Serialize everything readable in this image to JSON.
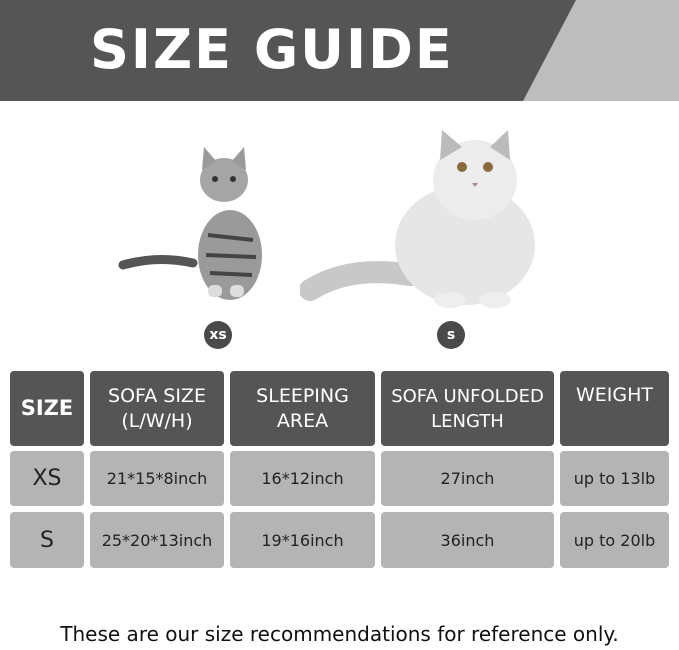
{
  "header": {
    "title": "SIZE GUIDE"
  },
  "cats": [
    {
      "badge": "xs"
    },
    {
      "badge": "s"
    }
  ],
  "table": {
    "headers": [
      "SIZE",
      "SOFA SIZE\n(L/W/H)",
      "SLEEPING\nAREA",
      "SOFA UNFOLDED\nLENGTH",
      "WEIGHT"
    ],
    "rows": [
      [
        "XS",
        "21*15*8inch",
        "16*12inch",
        "27inch",
        "up to 13lb"
      ],
      [
        "S",
        "25*20*13inch",
        "19*16inch",
        "36inch",
        "up to 20lb"
      ]
    ]
  },
  "footer": {
    "note": "These are our size recommendations for reference only."
  },
  "colors": {
    "header_bg": "#555555",
    "row_bg": "#b4b4b4",
    "banner_accent": "#bdbdbd"
  }
}
